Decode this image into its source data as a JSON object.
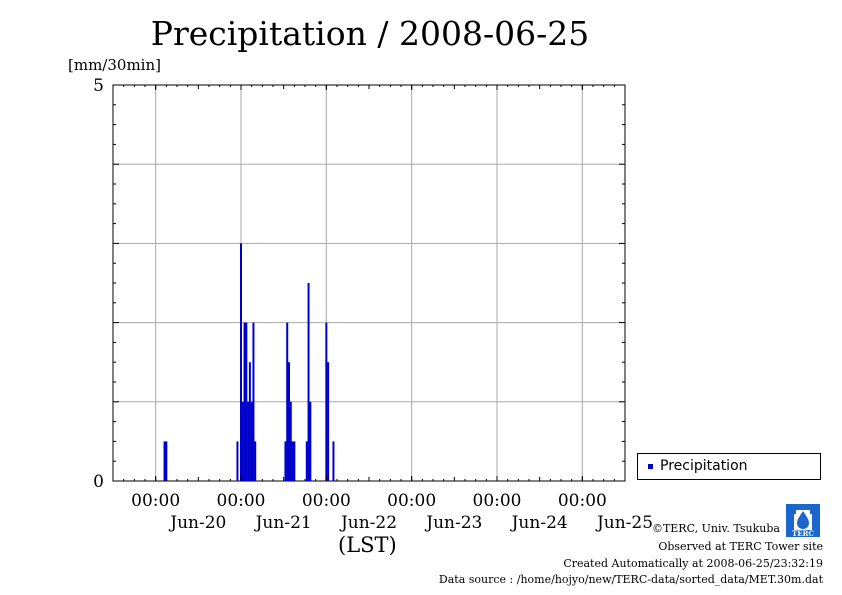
{
  "title": "Precipitation / 2008-06-25",
  "y_unit": "[mm/30min]",
  "x_axis_label": "(LST)",
  "legend_label": "Precipitation",
  "credits": {
    "line1": "©TERC, Univ. Tsukuba",
    "line2": "Observed at TERC Tower site",
    "line3": "Created Automatically at 2008-06-25/23:32:19",
    "line4": "Data source : /home/hojyo/new/TERC-data/sorted_data/MET.30m.dat"
  },
  "logo_text": "TERC",
  "colors": {
    "bar": "#0000cc",
    "grid": "#a8a8a8",
    "axis": "#000000",
    "background": "#ffffff"
  },
  "chart_data": {
    "type": "bar",
    "title": "Precipitation / 2008-06-25",
    "ylabel": "[mm/30min]",
    "xlabel": "(LST)",
    "ylim": [
      0,
      5
    ],
    "y_ticks": [
      {
        "value": 0,
        "label": "0"
      },
      {
        "value": 5,
        "label": "5"
      }
    ],
    "y_gridlines": [
      1,
      2,
      3,
      4
    ],
    "x_range_hours": [
      -12,
      132
    ],
    "x_ticks": [
      {
        "hour": 0,
        "time_label": "00:00",
        "date_label": "Jun-20"
      },
      {
        "hour": 24,
        "time_label": "00:00",
        "date_label": "Jun-21"
      },
      {
        "hour": 48,
        "time_label": "00:00",
        "date_label": "Jun-22"
      },
      {
        "hour": 72,
        "time_label": "00:00",
        "date_label": "Jun-23"
      },
      {
        "hour": 96,
        "time_label": "00:00",
        "date_label": "Jun-24"
      },
      {
        "hour": 120,
        "time_label": "00:00",
        "date_label": "Jun-25"
      }
    ],
    "legend": {
      "position": "bottom-right",
      "entries": [
        "Precipitation"
      ]
    },
    "grid": true,
    "series": [
      {
        "name": "Precipitation",
        "color": "#0000cc",
        "points": [
          {
            "x": 2.5,
            "y": 0.5
          },
          {
            "x": 3.0,
            "y": 0.5
          },
          {
            "x": 23.0,
            "y": 0.5
          },
          {
            "x": 24.0,
            "y": 3.0
          },
          {
            "x": 24.5,
            "y": 1.0
          },
          {
            "x": 25.0,
            "y": 2.0
          },
          {
            "x": 25.5,
            "y": 2.0
          },
          {
            "x": 26.0,
            "y": 1.0
          },
          {
            "x": 26.5,
            "y": 1.5
          },
          {
            "x": 27.0,
            "y": 1.0
          },
          {
            "x": 27.5,
            "y": 2.0
          },
          {
            "x": 28.0,
            "y": 0.5
          },
          {
            "x": 36.5,
            "y": 0.5
          },
          {
            "x": 37.0,
            "y": 2.0
          },
          {
            "x": 37.5,
            "y": 1.5
          },
          {
            "x": 38.0,
            "y": 1.0
          },
          {
            "x": 38.5,
            "y": 0.5
          },
          {
            "x": 39.0,
            "y": 0.5
          },
          {
            "x": 42.5,
            "y": 0.5
          },
          {
            "x": 43.0,
            "y": 2.5
          },
          {
            "x": 43.5,
            "y": 1.0
          },
          {
            "x": 48.0,
            "y": 2.0
          },
          {
            "x": 48.5,
            "y": 1.5
          },
          {
            "x": 50.0,
            "y": 0.5
          }
        ]
      }
    ]
  }
}
